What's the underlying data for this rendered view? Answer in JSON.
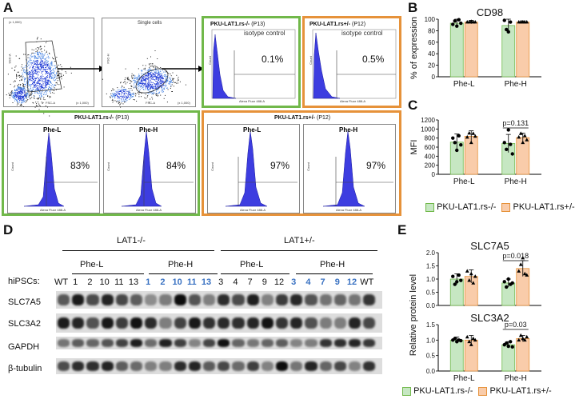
{
  "panels": {
    "A": "A",
    "B": "B",
    "C": "C",
    "D": "D",
    "E": "E"
  },
  "panelA": {
    "gate1": {
      "ylabel": "SSC-A",
      "xlabel": "FSC-A",
      "ytop": "(x 1,000)",
      "xright": "(x 1,000)",
      "xticks": [
        "50",
        "100",
        "150",
        "200",
        "250"
      ],
      "yticks": [
        "250",
        "200",
        "150",
        "100",
        "50",
        "0"
      ]
    },
    "gate2": {
      "title": "Single cells",
      "ylabel": "FSC-H",
      "xlabel": "FSC-A",
      "xright": "(x 1,000)",
      "xticks": [
        "50",
        "100",
        "150",
        "200",
        "250"
      ],
      "yticks": [
        "250",
        "200",
        "150",
        "100",
        "50",
        "0"
      ]
    },
    "iso_minus": {
      "title": "PKU-LAT1.rs-/-",
      "passage": "(P13)",
      "subtitle": "isotype control",
      "pct": "0.1%"
    },
    "iso_plus": {
      "title": "PKU-LAT1.rs+/-",
      "passage": "(P12)",
      "subtitle": "isotype control",
      "pct": "0.5%"
    },
    "histo_xlabel": "Alexa Fluor 488-A",
    "histo_ylabel": "Count",
    "minus_group": {
      "title": "PKU-LAT1.rs-/-",
      "passage": "(P13)",
      "pheL_pct": "83%",
      "pheH_pct": "84%"
    },
    "plus_group": {
      "title": "PKU-LAT1.rs+/-",
      "passage": "(P12)",
      "pheL_pct": "97%",
      "pheH_pct": "97%"
    },
    "pheL": "Phe-L",
    "pheH": "Phe-H"
  },
  "colors": {
    "green": "#71b84a",
    "orange": "#e6923a",
    "greenFill": "#c6e7c2",
    "orangeFill": "#f9ccaa",
    "blue": "#3a72c2",
    "histo": "#3d3de0"
  },
  "chart_data": [
    {
      "type": "bar",
      "title": "CD98",
      "ylabel": "% of expression",
      "ylim": [
        0,
        100
      ],
      "yticks": [
        "0",
        "20",
        "40",
        "60",
        "80",
        "100"
      ],
      "categories": [
        "Phe-L",
        "Phe-H"
      ],
      "series": [
        {
          "name": "PKU-LAT1.rs-/-",
          "values": [
            93,
            89
          ],
          "err": [
            7,
            11
          ],
          "points": [
            [
              91,
              97,
              88,
              99,
              93
            ],
            [
              98,
              82,
              78,
              95
            ]
          ]
        },
        {
          "name": "PKU-LAT1.rs+/-",
          "values": [
            95,
            95
          ],
          "err": [
            3,
            2
          ],
          "points": [
            [
              95,
              95,
              96,
              95,
              95
            ],
            [
              95,
              95,
              95,
              95,
              95
            ]
          ]
        }
      ]
    },
    {
      "type": "bar",
      "title": "",
      "ylabel": "MFI",
      "ylim": [
        0,
        1200
      ],
      "yticks": [
        "0",
        "200",
        "400",
        "600",
        "800",
        "1000",
        "1200"
      ],
      "categories": [
        "Phe-L",
        "Phe-H"
      ],
      "annotation": {
        "text": "p=0.131",
        "category": "Phe-H"
      },
      "series": [
        {
          "name": "PKU-LAT1.rs-/-",
          "values": [
            710,
            680
          ],
          "err": [
            180,
            200
          ],
          "points": [
            [
              800,
              700,
              530,
              850,
              650
            ],
            [
              700,
              550,
              980,
              660,
              450
            ]
          ]
        },
        {
          "name": "PKU-LAT1.rs+/-",
          "values": [
            840,
            810
          ],
          "err": [
            120,
            100
          ],
          "points": [
            [
              820,
              910,
              700,
              900,
              840
            ],
            [
              820,
              900,
              700,
              850,
              760
            ]
          ]
        }
      ]
    },
    {
      "type": "bar",
      "title": "SLC7A5",
      "ylabel": "",
      "ylim": [
        0,
        2.0
      ],
      "yticks": [
        "0.0",
        "0.5",
        "1.0",
        "1.5",
        "2.0"
      ],
      "categories": [
        "Phe-L",
        "Phe-H"
      ],
      "annotation": {
        "text": "p=0.018",
        "category": "Phe-H"
      },
      "series": [
        {
          "name": "PKU-LAT1.rs-/-",
          "values": [
            1.0,
            0.85
          ],
          "err": [
            0.2,
            0.15
          ],
          "points": [
            [
              1.1,
              0.8,
              0.9,
              1.15,
              0.95
            ],
            [
              0.9,
              0.7,
              1.0,
              0.8,
              0.85
            ]
          ]
        },
        {
          "name": "PKU-LAT1.rs+/-",
          "values": [
            1.1,
            1.4
          ],
          "err": [
            0.25,
            0.3
          ],
          "points": [
            [
              1.3,
              0.95,
              1.2,
              0.85,
              1.1
            ],
            [
              1.3,
              1.55,
              1.8,
              1.2,
              1.15
            ]
          ]
        }
      ]
    },
    {
      "type": "bar",
      "title": "SLC3A2",
      "ylabel": "",
      "ylim": [
        0,
        1.5
      ],
      "yticks": [
        "0.0",
        "0.5",
        "1.0",
        "1.5"
      ],
      "categories": [
        "Phe-L",
        "Phe-H"
      ],
      "annotation": {
        "text": "p=0.03",
        "category": "Phe-H"
      },
      "series": [
        {
          "name": "PKU-LAT1.rs-/-",
          "values": [
            1.0,
            0.85
          ],
          "err": [
            0.1,
            0.1
          ],
          "points": [
            [
              1.0,
              1.05,
              0.95,
              1.0,
              0.98
            ],
            [
              0.85,
              0.9,
              0.8,
              0.95,
              0.78
            ]
          ]
        },
        {
          "name": "PKU-LAT1.rs+/-",
          "values": [
            1.0,
            1.05
          ],
          "err": [
            0.15,
            0.1
          ],
          "points": [
            [
              1.1,
              0.95,
              0.85,
              1.05,
              1.0
            ],
            [
              1.0,
              1.15,
              1.05,
              1.0,
              1.1
            ]
          ]
        }
      ]
    }
  ],
  "legendC": {
    "minus": "PKU-LAT1.rs-/-",
    "plus": "PKU-LAT1.rs+/-"
  },
  "legendE": {
    "minus": "PKU-LAT1.rs-/-",
    "plus": "PKU-LAT1.rs+/-"
  },
  "panelE": {
    "ylabel": "Relative protein level"
  },
  "blot": {
    "lat1minus": "LAT1-/-",
    "lat1plus": "LAT1+/-",
    "pheL": "Phe-L",
    "pheH": "Phe-H",
    "hipsc": "hiPSCs:",
    "lanes": [
      "WT",
      "1",
      "2",
      "10",
      "11",
      "13",
      "1",
      "2",
      "10",
      "11",
      "13",
      "3",
      "4",
      "7",
      "9",
      "12",
      "3",
      "4",
      "7",
      "9",
      "12",
      "WT"
    ],
    "rows": [
      "SLC7A5",
      "SLC3A2",
      "GAPDH",
      "β-tubulin"
    ]
  }
}
